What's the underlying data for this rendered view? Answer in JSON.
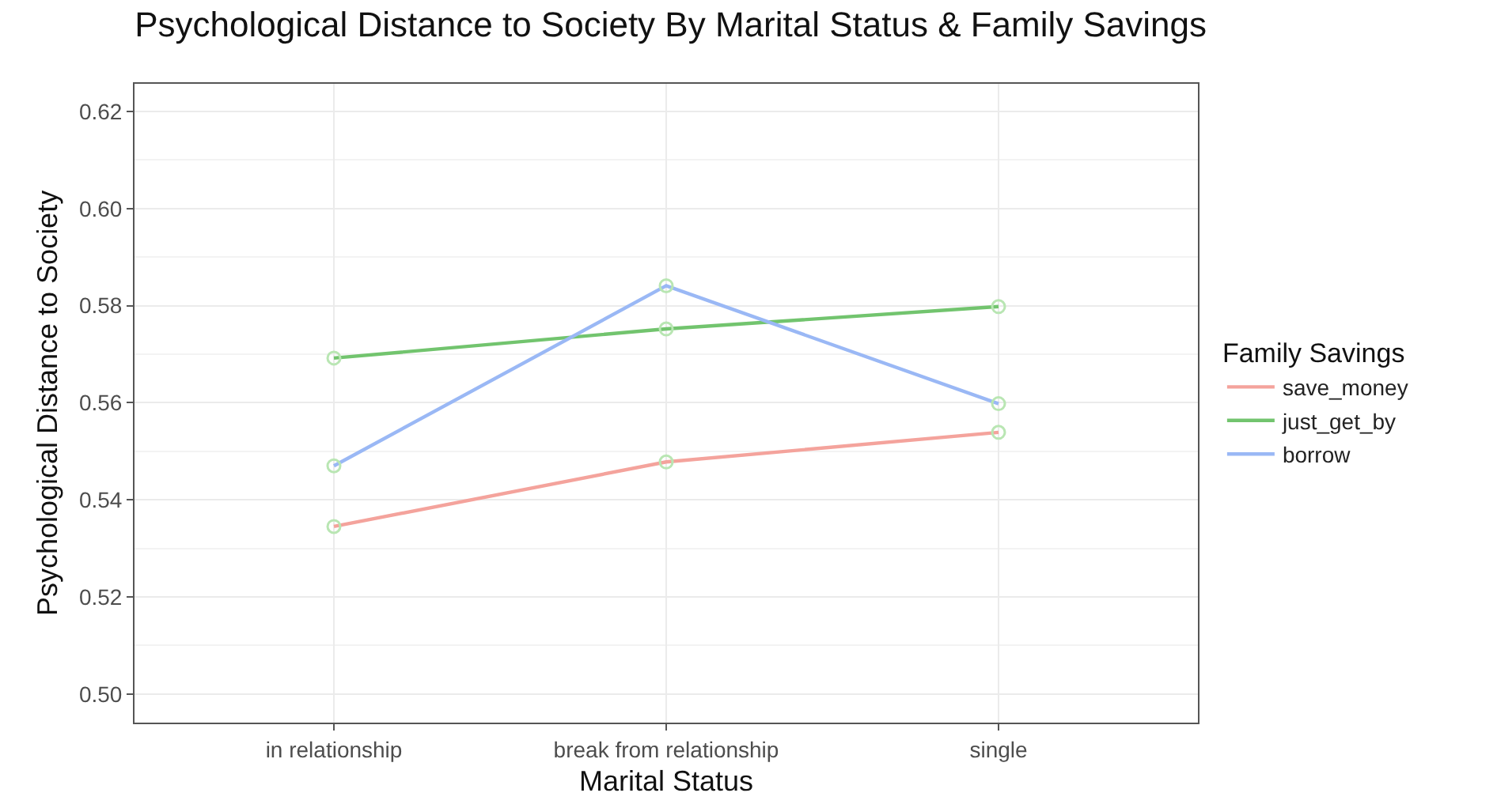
{
  "chart_data": {
    "type": "line",
    "title": "Psychological Distance to Society By Marital Status & Family Savings",
    "xlabel": "Marital Status",
    "ylabel": "Psychological Distance to Society",
    "legend_title": "Family Savings",
    "categories": [
      "in relationship",
      "break from relationship",
      "single"
    ],
    "series": [
      {
        "name": "save_money",
        "color": "#f4a39c",
        "values": [
          0.5345,
          0.5478,
          0.5539
        ]
      },
      {
        "name": "just_get_by",
        "color": "#72c46e",
        "values": [
          0.5692,
          0.5752,
          0.5798
        ]
      },
      {
        "name": "borrow",
        "color": "#9ab8f5",
        "values": [
          0.547,
          0.5841,
          0.5598
        ]
      },
      {
        "type": "scatter",
        "color": "#b9e6b3",
        "x": [
          "in relationship",
          "break from relationship",
          "single",
          "in relationship",
          "break from relationship",
          "single",
          "in relationship",
          "break from relationship",
          "single"
        ],
        "values": [
          0.5345,
          0.5478,
          0.5539,
          0.5692,
          0.5752,
          0.5798,
          0.547,
          0.5841,
          0.5598
        ],
        "marker": "circle"
      }
    ],
    "ylim": [
      0.4941,
      0.6257
    ],
    "yticks": [
      {
        "value": 0.5,
        "label": "0.50"
      },
      0.52,
      0.54,
      0.56,
      0.58,
      {
        "value": 0.6,
        "label": "0.60"
      },
      0.62
    ],
    "grid": true,
    "legend": "right",
    "marker": "none",
    "line_style": "solid"
  }
}
